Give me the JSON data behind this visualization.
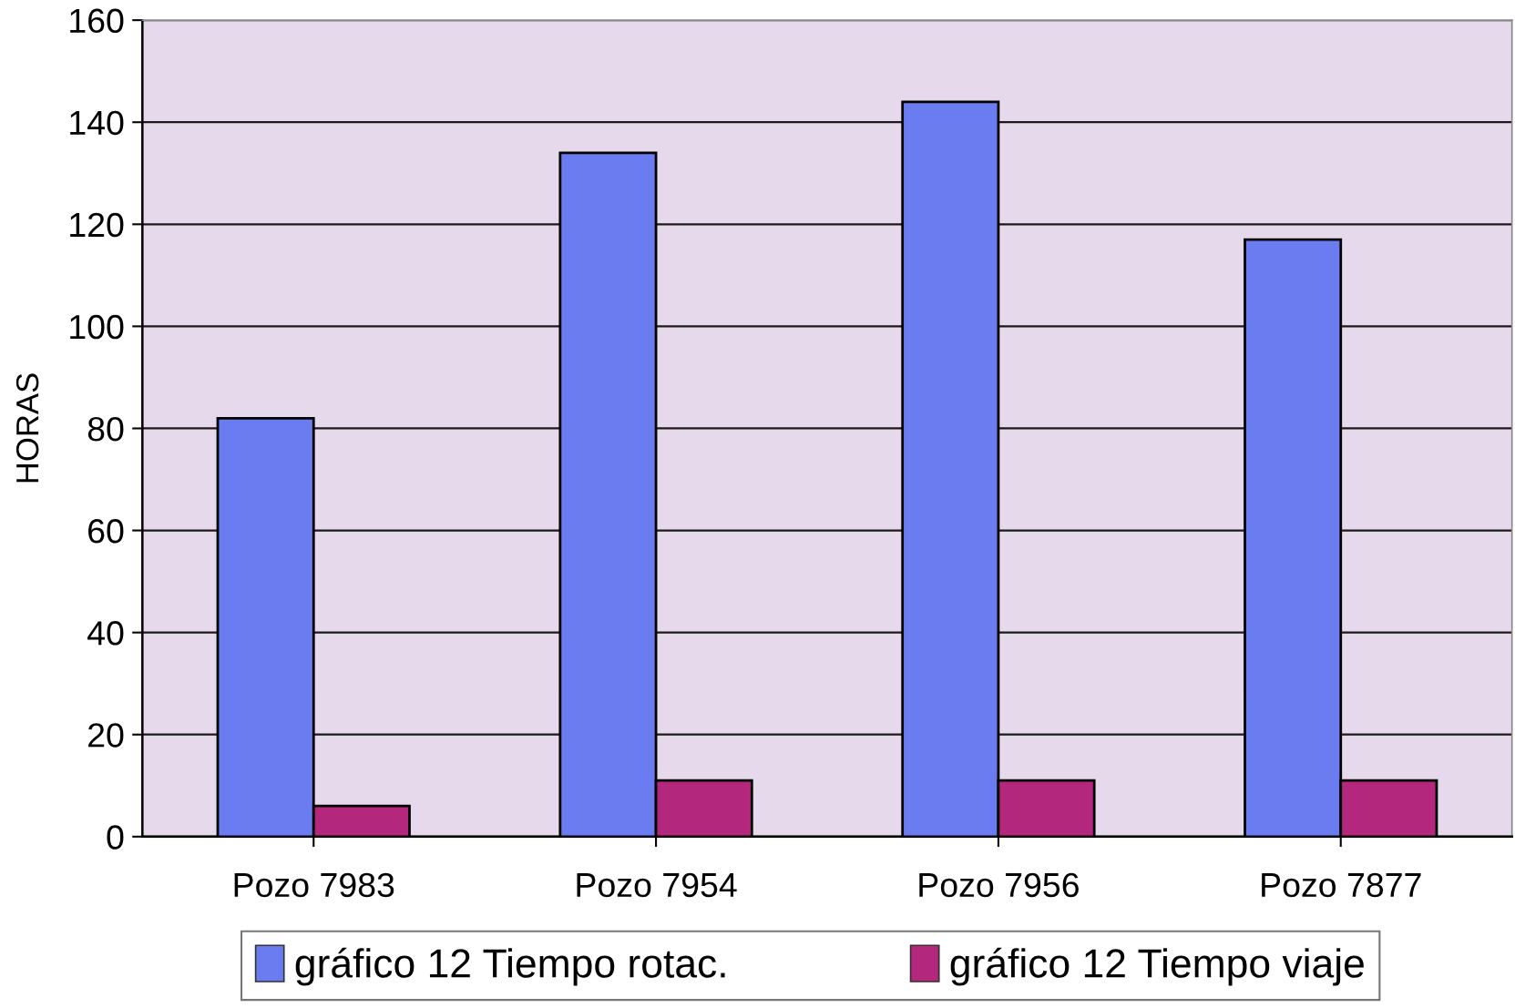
{
  "chart_data": {
    "type": "bar",
    "ylabel": "HORAS",
    "categories": [
      "Pozo 7983",
      "Pozo 7954",
      "Pozo 7956",
      "Pozo 7877"
    ],
    "series": [
      {
        "name": "gráfico 12 Tiempo rotac.",
        "color": "#6b7cf0",
        "values": [
          82,
          134,
          144,
          117
        ]
      },
      {
        "name": "gráfico 12 Tiempo viaje",
        "color": "#b3277d",
        "values": [
          6,
          11,
          11,
          11
        ]
      }
    ],
    "ylim": [
      0,
      160
    ],
    "yticks": [
      0,
      20,
      40,
      60,
      80,
      100,
      120,
      140,
      160
    ],
    "grid": "y",
    "legend": "bottom"
  }
}
